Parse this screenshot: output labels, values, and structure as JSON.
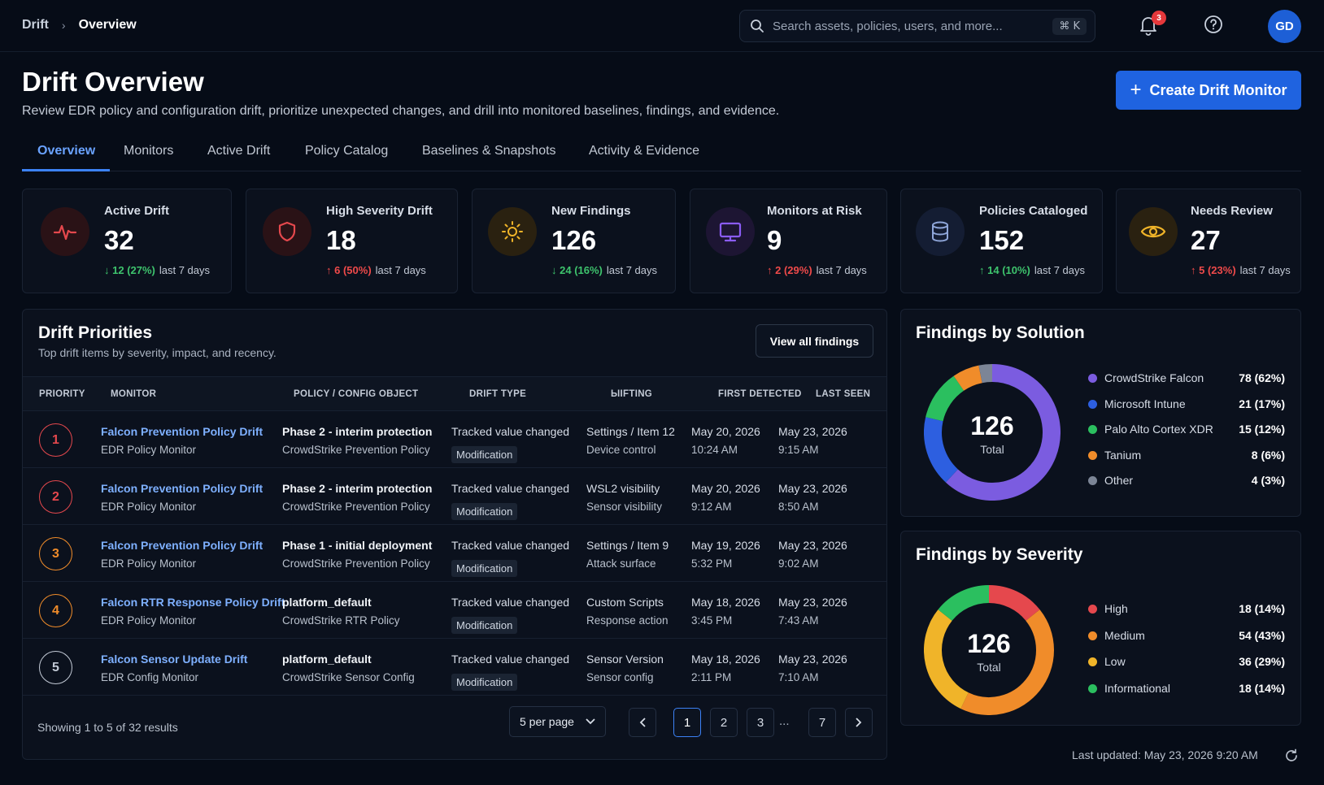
{
  "breadcrumb": {
    "root": "Drift",
    "separator": "›",
    "current": "Overview"
  },
  "search": {
    "placeholder": "Search assets, policies, users, and more...",
    "shortcut": "⌘ K"
  },
  "notifications": {
    "count": "3"
  },
  "user": {
    "initials": "GD"
  },
  "header": {
    "title": "Drift Overview",
    "subtitle": "Review EDR policy and configuration drift, prioritize unexpected changes, and drill into monitored baselines, findings, and evidence.",
    "create_button": "Create Drift Monitor"
  },
  "tabs": [
    {
      "label": "Overview"
    },
    {
      "label": "Monitors"
    },
    {
      "label": "Active Drift"
    },
    {
      "label": "Policy Catalog"
    },
    {
      "label": "Baselines & Snapshots"
    },
    {
      "label": "Activity & Evidence"
    }
  ],
  "kpis": [
    {
      "label": "Active Drift",
      "value": "32",
      "delta": "12 (27%)",
      "arrow": "↓",
      "period": "last 7 days",
      "icon": "activity-pulse-icon",
      "color": "#e5484d"
    },
    {
      "label": "High Severity Drift",
      "value": "18",
      "delta": "6 (50%)",
      "arrow": "↑",
      "period": "last 7 days",
      "icon": "shield-icon",
      "color": "#e5484d"
    },
    {
      "label": "New Findings",
      "value": "126",
      "delta": "24 (16%)",
      "arrow": "↓",
      "period": "last 7 days",
      "icon": "sun-icon",
      "color": "#f0b429"
    },
    {
      "label": "Monitors at Risk",
      "value": "9",
      "delta": "2 (29%)",
      "arrow": "↑",
      "period": "last 7 days",
      "icon": "monitor-icon",
      "color": "#8b5cf6"
    },
    {
      "label": "Policies Cataloged",
      "value": "152",
      "delta": "14 (10%)",
      "arrow": "↑",
      "period": "last 7 days",
      "icon": "database-icon",
      "color": "#6b8fd6"
    },
    {
      "label": "Needs Review",
      "value": "27",
      "delta": "5 (23%)",
      "arrow": "↑",
      "period": "last 7 days",
      "icon": "eye-icon",
      "color": "#f0b429"
    }
  ],
  "priorities": {
    "title": "Drift Priorities",
    "subtitle": "Top drift items by severity, impact, and recency.",
    "view_all": "View all findings",
    "columns": [
      "PRIORITY",
      "MONITOR",
      "POLICY / CONFIG OBJECT",
      "DRIFT TYPE",
      "ЫIFTING",
      "FIRST DETECTED",
      "LAST SEEN"
    ],
    "rows": [
      {
        "priority": "1",
        "priority_color": "#e5484d",
        "monitor": "Falcon Prevention Policy Drift",
        "monitor_type": "EDR Policy Monitor",
        "object": "Phase 2 - interim protection",
        "object_type": "CrowdStrike Prevention Policy",
        "drift_type": "Tracked value changed",
        "badge": "Modification",
        "setting": "Settings / Item 12",
        "setting_sub": "Device control",
        "first_date": "May 20, 2026",
        "first_time": "10:24 AM",
        "last_date": "May 23, 2026",
        "last_time": "9:15 AM"
      },
      {
        "priority": "2",
        "priority_color": "#e5484d",
        "monitor": "Falcon Prevention Policy Drift",
        "monitor_type": "EDR Policy Monitor",
        "object": "Phase 2 - interim protection",
        "object_type": "CrowdStrike Prevention Policy",
        "drift_type": "Tracked value changed",
        "badge": "Modification",
        "setting": "WSL2 visibility",
        "setting_sub": "Sensor visibility",
        "first_date": "May 20, 2026",
        "first_time": "9:12 AM",
        "last_date": "May 23, 2026",
        "last_time": "8:50 AM"
      },
      {
        "priority": "3",
        "priority_color": "#f08c2a",
        "monitor": "Falcon Prevention Policy Drift",
        "monitor_type": "EDR Policy Monitor",
        "object": "Phase 1 - initial deployment",
        "object_type": "CrowdStrike Prevention Policy",
        "drift_type": "Tracked value changed",
        "badge": "Modification",
        "setting": "Settings / Item 9",
        "setting_sub": "Attack surface",
        "first_date": "May 19, 2026",
        "first_time": "5:32 PM",
        "last_date": "May 23, 2026",
        "last_time": "9:02 AM"
      },
      {
        "priority": "4",
        "priority_color": "#f08c2a",
        "monitor": "Falcon RTR Response Policy Drift",
        "monitor_type": "EDR Policy Monitor",
        "object": "platform_default",
        "object_type": "CrowdStrike RTR Policy",
        "drift_type": "Tracked value changed",
        "badge": "Modification",
        "setting": "Custom Scripts",
        "setting_sub": "Response action",
        "first_date": "May 18, 2026",
        "first_time": "3:45 PM",
        "last_date": "May 23, 2026",
        "last_time": "7:43 AM"
      },
      {
        "priority": "5",
        "priority_color": "#c3cad6",
        "monitor": "Falcon Sensor Update Drift",
        "monitor_type": "EDR Config Monitor",
        "object": "platform_default",
        "object_type": "CrowdStrike Sensor Config",
        "drift_type": "Tracked value changed",
        "badge": "Modification",
        "setting": "Sensor Version",
        "setting_sub": "Sensor config",
        "first_date": "May 18, 2026",
        "first_time": "2:11 PM",
        "last_date": "May 23, 2026",
        "last_time": "7:10 AM"
      }
    ],
    "footer": "Showing 1 to 5 of 32 results",
    "per_page": "5 per page",
    "pages": [
      "1",
      "2",
      "3",
      "7"
    ],
    "ellipsis": "...",
    "current_page": "1"
  },
  "by_solution": {
    "title": "Findings by Solution",
    "total": "126",
    "total_label": "Total",
    "items": [
      {
        "name": "CrowdStrike Falcon",
        "value": 78,
        "display": "78 (62%)",
        "color": "#7b5ce0"
      },
      {
        "name": "Microsoft Intune",
        "value": 21,
        "display": "21 (17%)",
        "color": "#2d5fe0"
      },
      {
        "name": "Palo Alto Cortex XDR",
        "value": 15,
        "display": "15 (12%)",
        "color": "#2bbf5f"
      },
      {
        "name": "Tanium",
        "value": 8,
        "display": "8 (6%)",
        "color": "#f08c2a"
      },
      {
        "name": "Other",
        "value": 4,
        "display": "4 (3%)",
        "color": "#7c8596"
      }
    ]
  },
  "by_severity": {
    "title": "Findings by Severity",
    "total": "126",
    "total_label": "Total",
    "items": [
      {
        "name": "High",
        "value": 18,
        "display": "18 (14%)",
        "color": "#e5484d"
      },
      {
        "name": "Medium",
        "value": 54,
        "display": "54 (43%)",
        "color": "#f08c2a"
      },
      {
        "name": "Low",
        "value": 36,
        "display": "36 (29%)",
        "color": "#f0b429"
      },
      {
        "name": "Informational",
        "value": 18,
        "display": "18 (14%)",
        "color": "#2bbf5f"
      }
    ]
  },
  "last_updated": "Last updated: May 23, 2026 9:20 AM"
}
